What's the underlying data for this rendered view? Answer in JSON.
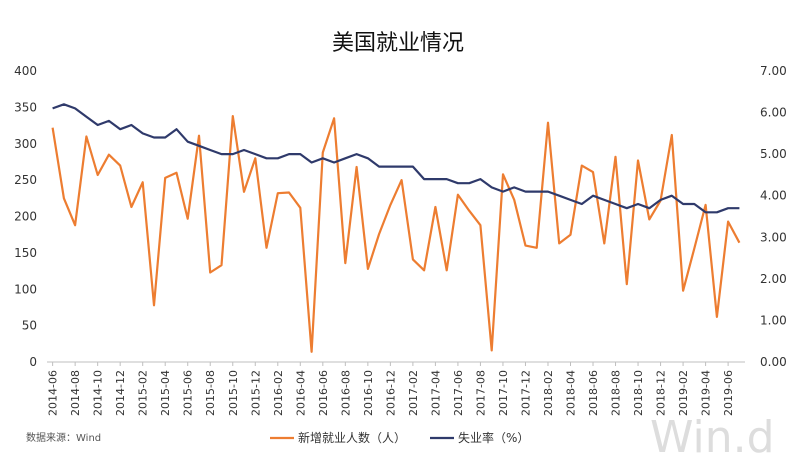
{
  "chart_data": {
    "type": "line",
    "title": "美国就业情况",
    "x": [
      "2014-06",
      "2014-07",
      "2014-08",
      "2014-09",
      "2014-10",
      "2014-11",
      "2014-12",
      "2015-01",
      "2015-02",
      "2015-03",
      "2015-04",
      "2015-05",
      "2015-06",
      "2015-07",
      "2015-08",
      "2015-09",
      "2015-10",
      "2015-11",
      "2015-12",
      "2016-01",
      "2016-02",
      "2016-03",
      "2016-04",
      "2016-05",
      "2016-06",
      "2016-07",
      "2016-08",
      "2016-09",
      "2016-10",
      "2016-11",
      "2016-12",
      "2017-01",
      "2017-02",
      "2017-03",
      "2017-04",
      "2017-05",
      "2017-06",
      "2017-07",
      "2017-08",
      "2017-09",
      "2017-10",
      "2017-11",
      "2017-12",
      "2018-01",
      "2018-02",
      "2018-03",
      "2018-04",
      "2018-05",
      "2018-06",
      "2018-07",
      "2018-08",
      "2018-09",
      "2018-10",
      "2018-11",
      "2018-12",
      "2019-01",
      "2019-02",
      "2019-03",
      "2019-04",
      "2019-05",
      "2019-06",
      "2019-07"
    ],
    "x_tick_labels": [
      "2014-06",
      "2014-08",
      "2014-10",
      "2014-12",
      "2015-02",
      "2015-04",
      "2015-06",
      "2015-08",
      "2015-10",
      "2015-12",
      "2016-02",
      "2016-04",
      "2016-06",
      "2016-08",
      "2016-10",
      "2016-12",
      "2017-02",
      "2017-04",
      "2017-06",
      "2017-08",
      "2017-10",
      "2017-12",
      "2018-02",
      "2018-04",
      "2018-06",
      "2018-08",
      "2018-10",
      "2018-12",
      "2019-02",
      "2019-04",
      "2019-06"
    ],
    "series": [
      {
        "name": "新增就业人数（人）",
        "axis": "left",
        "color": "#ed7d31",
        "values": [
          322,
          225,
          188,
          310,
          257,
          285,
          270,
          213,
          247,
          78,
          253,
          260,
          197,
          311,
          123,
          133,
          338,
          234,
          280,
          157,
          232,
          233,
          212,
          14,
          288,
          335,
          136,
          268,
          128,
          176,
          216,
          250,
          141,
          126,
          213,
          126,
          230,
          208,
          188,
          16,
          258,
          223,
          160,
          157,
          329,
          163,
          175,
          270,
          261,
          163,
          282,
          107,
          277,
          196,
          222,
          312,
          98,
          156,
          216,
          62,
          193,
          164
        ]
      },
      {
        "name": "失业率（%）",
        "axis": "right",
        "color": "#2f3a6b",
        "values": [
          6.1,
          6.2,
          6.1,
          5.9,
          5.7,
          5.8,
          5.6,
          5.7,
          5.5,
          5.4,
          5.4,
          5.6,
          5.3,
          5.2,
          5.1,
          5.0,
          5.0,
          5.1,
          5.0,
          4.9,
          4.9,
          5.0,
          5.0,
          4.8,
          4.9,
          4.8,
          4.9,
          5.0,
          4.9,
          4.7,
          4.7,
          4.7,
          4.7,
          4.4,
          4.4,
          4.4,
          4.3,
          4.3,
          4.4,
          4.2,
          4.1,
          4.2,
          4.1,
          4.1,
          4.1,
          4.0,
          3.9,
          3.8,
          4.0,
          3.9,
          3.8,
          3.7,
          3.8,
          3.7,
          3.9,
          4.0,
          3.8,
          3.8,
          3.6,
          3.6,
          3.7,
          3.7
        ]
      }
    ],
    "y_left": {
      "range": [
        0,
        400
      ],
      "ticks": [
        "0",
        "50",
        "100",
        "150",
        "200",
        "250",
        "300",
        "350",
        "400"
      ]
    },
    "y_right": {
      "range": [
        0,
        7
      ],
      "ticks": [
        "0.00",
        "1.00",
        "2.00",
        "3.00",
        "4.00",
        "5.00",
        "6.00",
        "7.00"
      ]
    },
    "grid": false,
    "legend_placement": "bottom-center",
    "source": "数据来源：Wind",
    "watermark": "Win.d"
  }
}
